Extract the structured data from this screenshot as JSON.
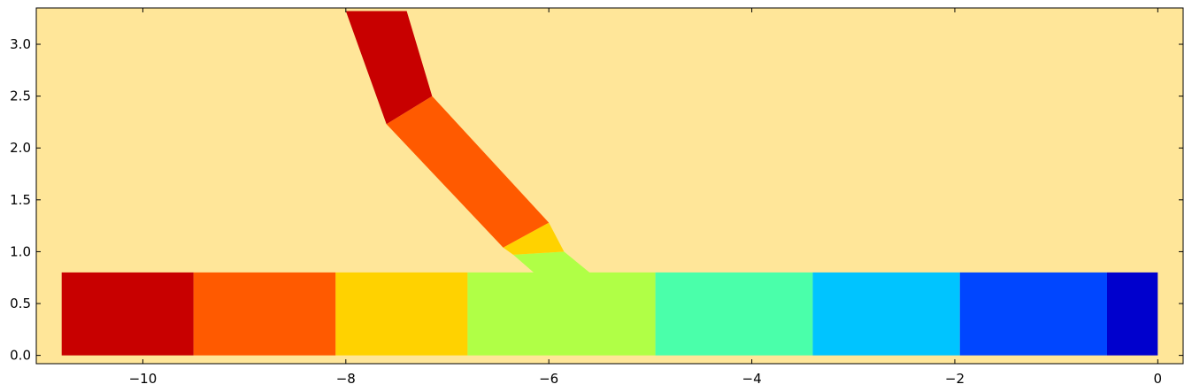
{
  "chart_data": {
    "type": "heatmap",
    "title": "",
    "xlabel": "",
    "ylabel": "",
    "xlim": [
      -11.05,
      0.25
    ],
    "ylim": [
      -0.08,
      3.35
    ],
    "x_ticks": [
      -10,
      -8,
      -6,
      -4,
      -2,
      0
    ],
    "x_tick_labels": [
      "−10",
      "−8",
      "−6",
      "−4",
      "−2",
      "0"
    ],
    "y_ticks": [
      0.0,
      0.5,
      1.0,
      1.5,
      2.0,
      2.5,
      3.0
    ],
    "y_tick_labels": [
      "0.0",
      "0.5",
      "1.0",
      "1.5",
      "2.0",
      "2.5",
      "3.0"
    ],
    "grid": false,
    "background_color": "#FFE699",
    "regions": [
      {
        "polygon": [
          [
            -10.8,
            0
          ],
          [
            -9.5,
            0
          ],
          [
            -9.5,
            0.8
          ],
          [
            -10.8,
            0.8
          ]
        ],
        "color": "#C80000"
      },
      {
        "polygon": [
          [
            -9.5,
            0
          ],
          [
            -8.1,
            0
          ],
          [
            -8.1,
            0.8
          ],
          [
            -9.5,
            0.8
          ]
        ],
        "color": "#FF5A00"
      },
      {
        "polygon": [
          [
            -8.1,
            0
          ],
          [
            -6.8,
            0
          ],
          [
            -6.8,
            0.8
          ],
          [
            -8.1,
            0.8
          ]
        ],
        "color": "#FFD200"
      },
      {
        "polygon": [
          [
            -6.8,
            0
          ],
          [
            -4.95,
            0
          ],
          [
            -4.95,
            0.8
          ],
          [
            -5.6,
            0.8
          ],
          [
            -5.85,
            1.0
          ],
          [
            -6.35,
            0.97
          ],
          [
            -6.15,
            0.8
          ],
          [
            -6.8,
            0.8
          ]
        ],
        "color": "#B0FF46"
      },
      {
        "polygon": [
          [
            -4.95,
            0
          ],
          [
            -3.4,
            0
          ],
          [
            -3.4,
            0.8
          ],
          [
            -4.95,
            0.8
          ]
        ],
        "color": "#4AFFAA"
      },
      {
        "polygon": [
          [
            -3.4,
            0
          ],
          [
            -1.95,
            0
          ],
          [
            -1.95,
            0.8
          ],
          [
            -3.4,
            0.8
          ]
        ],
        "color": "#00C4FF"
      },
      {
        "polygon": [
          [
            -1.95,
            0
          ],
          [
            -0.5,
            0
          ],
          [
            -0.5,
            0.8
          ],
          [
            -1.95,
            0.8
          ]
        ],
        "color": "#0046FF"
      },
      {
        "polygon": [
          [
            -0.5,
            0
          ],
          [
            0,
            0
          ],
          [
            0,
            0.8
          ],
          [
            -0.5,
            0.8
          ]
        ],
        "color": "#0000CD"
      },
      {
        "polygon": [
          [
            -6.35,
            0.97
          ],
          [
            -5.85,
            1.0
          ],
          [
            -6.0,
            1.28
          ],
          [
            -6.45,
            1.04
          ]
        ],
        "color": "#FFD200"
      },
      {
        "polygon": [
          [
            -6.45,
            1.04
          ],
          [
            -6.0,
            1.28
          ],
          [
            -7.15,
            2.5
          ],
          [
            -7.6,
            2.23
          ]
        ],
        "color": "#FF5A00"
      },
      {
        "polygon": [
          [
            -7.6,
            2.23
          ],
          [
            -7.15,
            2.5
          ],
          [
            -7.4,
            3.32
          ],
          [
            -8.0,
            3.32
          ]
        ],
        "color": "#C80000"
      }
    ]
  }
}
